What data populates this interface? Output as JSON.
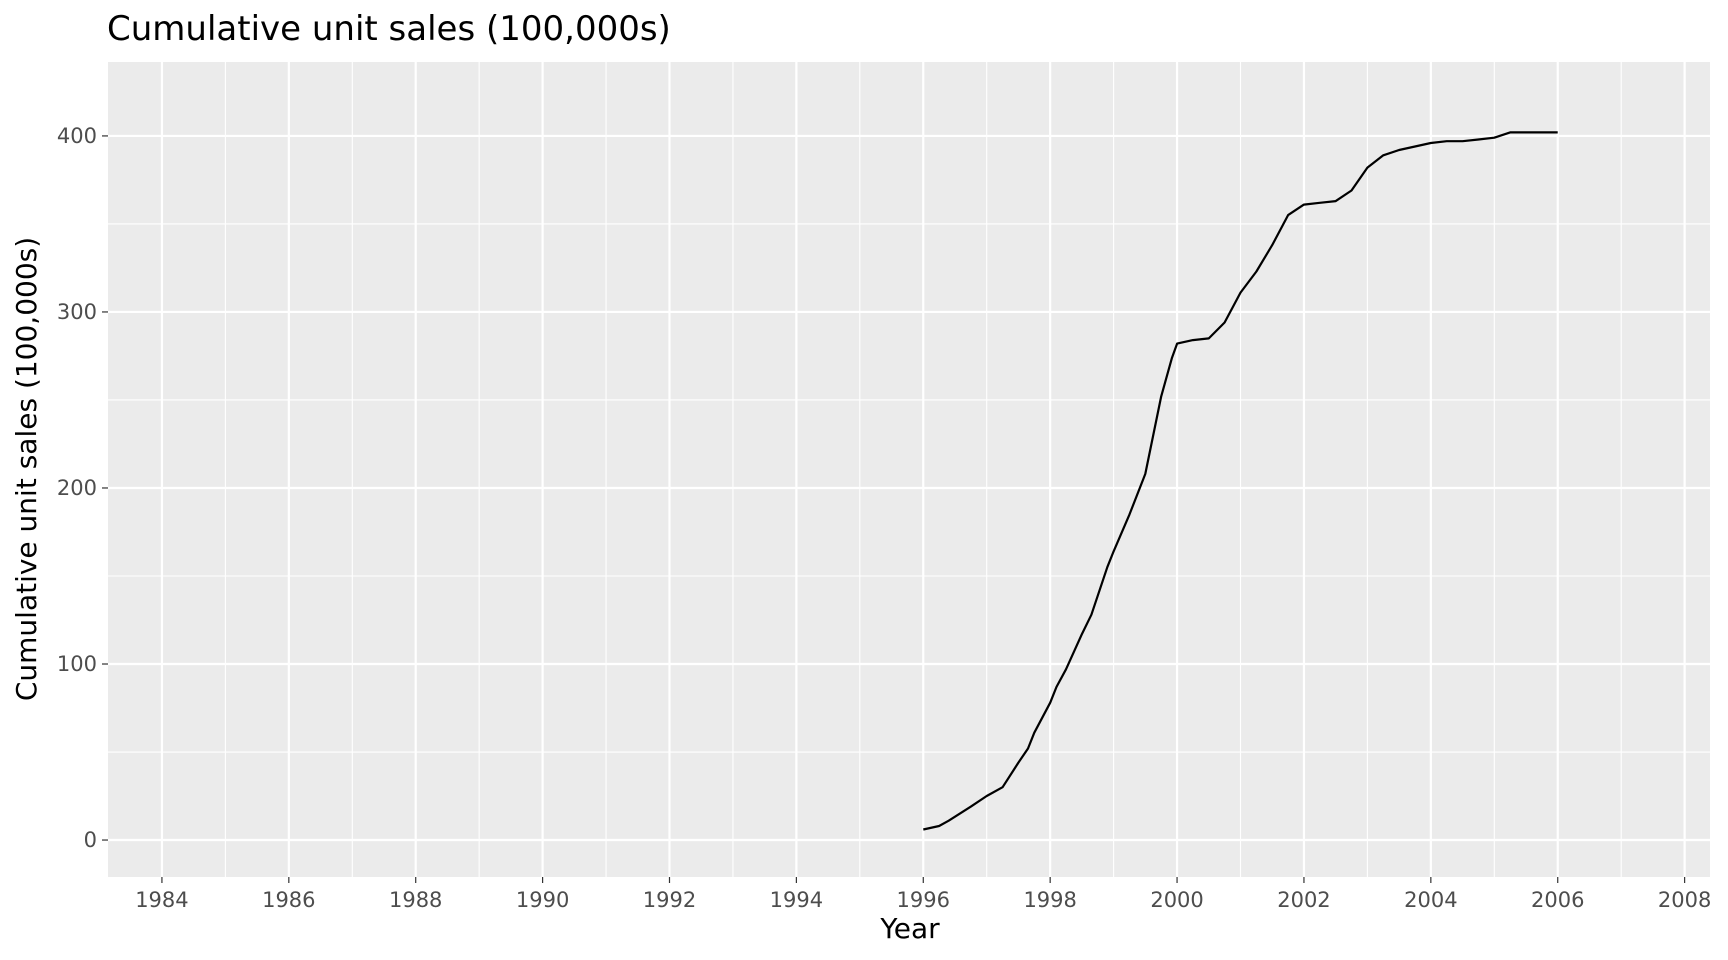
{
  "chart_data": {
    "type": "line",
    "title": "Cumulative unit sales (100,000s)",
    "xlabel": "Year",
    "ylabel": "Cumulative unit sales (100,000s)",
    "xlim": [
      1983.15,
      2008.4
    ],
    "ylim": [
      -21,
      442
    ],
    "x_ticks": [
      1984,
      1986,
      1988,
      1990,
      1992,
      1994,
      1996,
      1998,
      2000,
      2002,
      2004,
      2006,
      2008
    ],
    "y_ticks": [
      0,
      100,
      200,
      300,
      400
    ],
    "grid": true,
    "legend": "none",
    "colors": {
      "panel": "#ebebeb",
      "grid": "#ffffff",
      "line": "#000000",
      "tick_text": "#4d4d4d"
    },
    "series": [
      {
        "x": [
          1996.0,
          1996.25,
          1996.4,
          1996.75,
          1997.0,
          1997.25,
          1997.5,
          1997.65,
          1997.75,
          1998.0,
          1998.1,
          1998.25,
          1998.5,
          1998.65,
          1998.9,
          1999.0,
          1999.25,
          1999.5,
          1999.75,
          1999.92,
          2000.0,
          2000.25,
          2000.5,
          2000.75,
          2001.0,
          2001.25,
          2001.5,
          2001.75,
          2002.0,
          2002.25,
          2002.5,
          2002.75,
          2003.0,
          2003.25,
          2003.5,
          2003.75,
          2004.0,
          2004.25,
          2004.5,
          2004.75,
          2005.0,
          2005.25,
          2005.5,
          2005.75,
          2006.0
        ],
        "y": [
          6,
          8,
          11,
          19,
          25,
          30,
          44,
          52,
          61,
          78,
          87,
          97,
          117,
          128,
          155,
          164,
          185,
          208,
          252,
          274,
          282,
          284,
          285,
          294,
          311,
          323,
          338,
          355,
          361,
          362,
          363,
          369,
          382,
          389,
          392,
          394,
          396,
          397,
          397,
          398,
          399,
          402,
          402,
          402,
          402
        ]
      }
    ]
  }
}
